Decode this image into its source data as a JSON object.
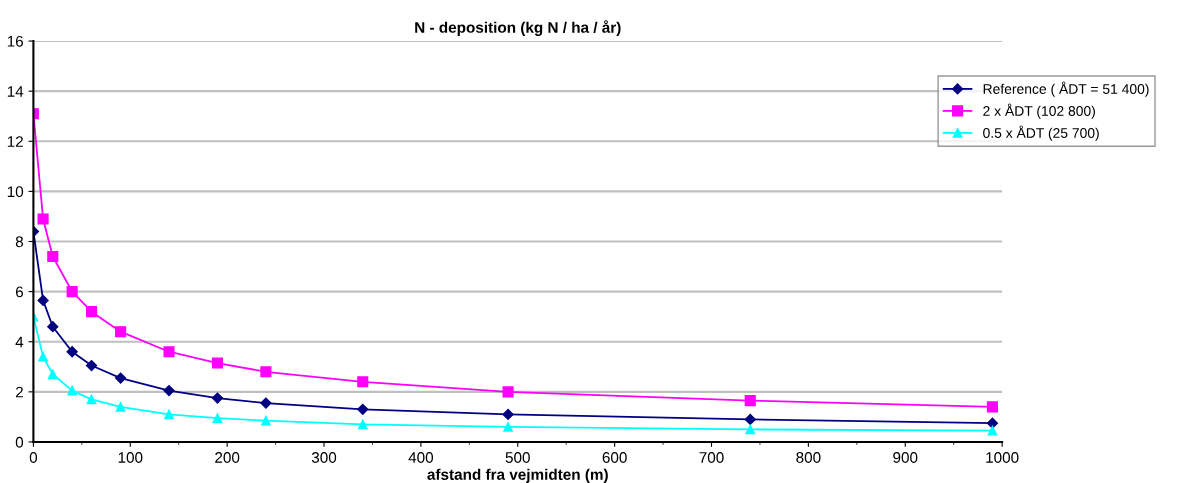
{
  "chart_data": {
    "type": "line",
    "title": "N - deposition (kg N / ha / år)",
    "xlabel": "afstand fra vejmidten (m)",
    "x": [
      0,
      10,
      20,
      40,
      60,
      90,
      140,
      190,
      240,
      340,
      490,
      740,
      990
    ],
    "series": [
      {
        "name": "Reference ( ÅDT = 51 400)",
        "color": "#000080",
        "marker": "diamond",
        "values": [
          8.4,
          5.65,
          4.6,
          3.6,
          3.05,
          2.55,
          2.05,
          1.75,
          1.55,
          1.3,
          1.1,
          0.9,
          0.75
        ]
      },
      {
        "name": "2 x ÅDT (102 800)",
        "color": "#ff00ff",
        "marker": "square",
        "values": [
          13.1,
          8.9,
          7.4,
          6.0,
          5.2,
          4.4,
          3.6,
          3.15,
          2.8,
          2.4,
          2.0,
          1.65,
          1.4
        ]
      },
      {
        "name": "0.5 x ÅDT (25 700)",
        "color": "#00ffff",
        "marker": "triangle",
        "values": [
          5.0,
          3.4,
          2.7,
          2.05,
          1.7,
          1.4,
          1.1,
          0.95,
          0.85,
          0.7,
          0.6,
          0.5,
          0.45
        ]
      }
    ],
    "xlim": [
      0,
      1000
    ],
    "xticks": [
      0,
      100,
      200,
      300,
      400,
      500,
      600,
      700,
      800,
      900,
      1000
    ],
    "ylim": [
      0,
      16
    ],
    "yticks": [
      0,
      2,
      4,
      6,
      8,
      10,
      12,
      14,
      16
    ],
    "grid": "y",
    "legend": "top right",
    "line_style": "solid"
  }
}
